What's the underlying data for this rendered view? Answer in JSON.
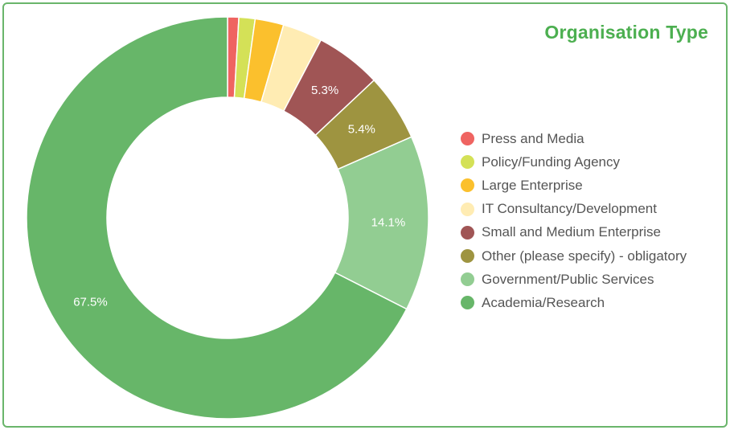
{
  "chart_data": {
    "type": "pie",
    "variant": "donut",
    "title": "Organisation Type",
    "legend_position": "right",
    "slices": [
      {
        "name": "Press and Media",
        "value": 0.9,
        "color": "#ef6461",
        "label": ""
      },
      {
        "name": "Policy/Funding Agency",
        "value": 1.3,
        "color": "#d4e157",
        "label": ""
      },
      {
        "name": "Large Enterprise",
        "value": 2.3,
        "color": "#fbc02d",
        "label": ""
      },
      {
        "name": "IT Consultancy/Development",
        "value": 3.2,
        "color": "#ffecb3",
        "label": ""
      },
      {
        "name": "Small and Medium Enterprise",
        "value": 5.3,
        "color": "#a05555",
        "label": "5.3%"
      },
      {
        "name": "Other (please specify) - obligatory",
        "value": 5.4,
        "color": "#9e9440",
        "label": "5.4%"
      },
      {
        "name": "Government/Public Services",
        "value": 14.1,
        "color": "#92cd92",
        "label": "14.1%"
      },
      {
        "name": "Academia/Research",
        "value": 67.5,
        "color": "#67b669",
        "label": "67.5%"
      }
    ]
  }
}
